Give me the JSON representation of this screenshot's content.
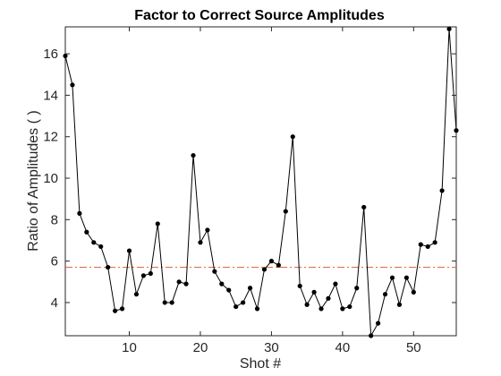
{
  "chart_data": {
    "type": "line",
    "title": "Factor to Correct Source Amplitudes",
    "xlabel": "Shot #",
    "ylabel": "Ratio of Amplitudes ( )",
    "xlim": [
      1,
      56
    ],
    "ylim": [
      2.4,
      17.3
    ],
    "xticks": [
      10,
      20,
      30,
      40,
      50
    ],
    "yticks": [
      4,
      6,
      8,
      10,
      12,
      14,
      16
    ],
    "grid": false,
    "series": [
      {
        "color": "#000000",
        "marker": "circle",
        "x": [
          1,
          2,
          3,
          4,
          5,
          6,
          7,
          8,
          9,
          10,
          11,
          12,
          13,
          14,
          15,
          16,
          17,
          18,
          19,
          20,
          21,
          22,
          23,
          24,
          25,
          26,
          27,
          28,
          29,
          30,
          31,
          32,
          33,
          34,
          35,
          36,
          37,
          38,
          39,
          40,
          41,
          42,
          43,
          44,
          45,
          46,
          47,
          48,
          49,
          50,
          51,
          52,
          53,
          54,
          55,
          56
        ],
        "values": [
          15.9,
          14.5,
          8.3,
          7.4,
          6.9,
          6.7,
          5.7,
          3.6,
          3.7,
          6.5,
          4.4,
          5.3,
          5.4,
          7.8,
          4.0,
          4.0,
          5.0,
          4.9,
          11.1,
          6.9,
          7.5,
          5.5,
          4.9,
          4.6,
          3.8,
          4.0,
          4.7,
          3.7,
          5.6,
          6.0,
          5.8,
          8.4,
          12.0,
          4.8,
          3.9,
          4.5,
          3.7,
          4.2,
          4.9,
          3.7,
          3.8,
          4.7,
          8.6,
          2.4,
          3.0,
          4.4,
          5.2,
          3.9,
          5.2,
          4.5,
          6.8,
          6.7,
          6.9,
          9.4,
          17.2,
          12.3
        ]
      }
    ],
    "reference_line": {
      "y": 5.7,
      "style": "dash-dot",
      "color": "#d95f3c"
    }
  }
}
